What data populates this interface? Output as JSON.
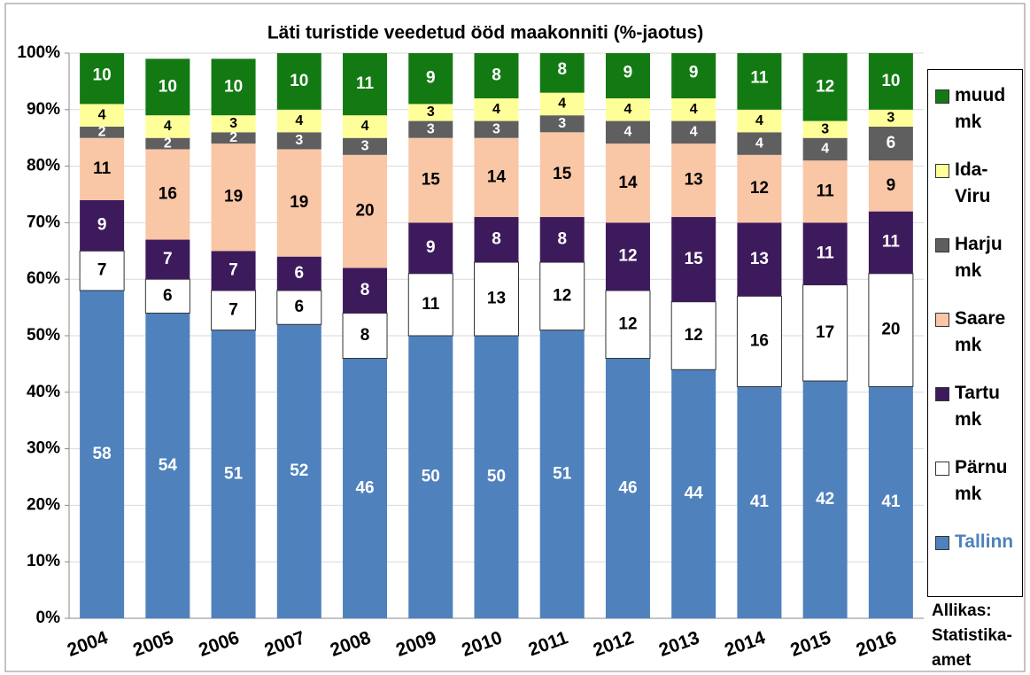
{
  "chart_data": {
    "type": "stacked_bar",
    "title": "Läti turistide veedetud ööd maakonniti (%-jaotus)",
    "categories": [
      "2004",
      "2005",
      "2006",
      "2007",
      "2008",
      "2009",
      "2010",
      "2011",
      "2012",
      "2013",
      "2014",
      "2015",
      "2016"
    ],
    "series": [
      {
        "name": "Tallinn",
        "color": "#4f81bd",
        "label_color": "#ffffff",
        "values": [
          58,
          54,
          51,
          52,
          46,
          50,
          50,
          51,
          46,
          44,
          41,
          42,
          41
        ]
      },
      {
        "name": "Pärnu mk",
        "color": "#ffffff",
        "label_color": "#000000",
        "values": [
          7,
          6,
          7,
          6,
          8,
          11,
          13,
          12,
          12,
          12,
          16,
          17,
          20
        ]
      },
      {
        "name": "Tartu mk",
        "color": "#3d1a5c",
        "label_color": "#ffffff",
        "values": [
          9,
          7,
          7,
          6,
          8,
          9,
          8,
          8,
          12,
          15,
          13,
          11,
          11
        ]
      },
      {
        "name": "Saare mk",
        "color": "#f9c6a6",
        "label_color": "#000000",
        "values": [
          11,
          16,
          19,
          19,
          20,
          15,
          14,
          15,
          14,
          13,
          12,
          11,
          9
        ]
      },
      {
        "name": "Harju mk",
        "color": "#5f5f5f",
        "label_color": "#ffffff",
        "values": [
          2,
          2,
          2,
          3,
          3,
          3,
          3,
          3,
          4,
          4,
          4,
          4,
          6
        ]
      },
      {
        "name": "Ida-Viru",
        "color": "#ffff99",
        "label_color": "#000000",
        "values": [
          4,
          4,
          3,
          4,
          4,
          3,
          4,
          4,
          4,
          4,
          4,
          3,
          3
        ]
      },
      {
        "name": "muud mk",
        "color": "#137a13",
        "label_color": "#ffffff",
        "values": [
          10,
          10,
          10,
          10,
          11,
          9,
          8,
          8,
          9,
          9,
          11,
          12,
          10
        ]
      }
    ],
    "ylim": [
      0,
      100
    ],
    "yticks": [
      {
        "value": 0,
        "label": "0%"
      },
      {
        "value": 10,
        "label": "10%"
      },
      {
        "value": 20,
        "label": "20%"
      },
      {
        "value": 30,
        "label": "30%"
      },
      {
        "value": 40,
        "label": "40%"
      },
      {
        "value": 50,
        "label": "50%"
      },
      {
        "value": 60,
        "label": "60%"
      },
      {
        "value": 70,
        "label": "70%"
      },
      {
        "value": 80,
        "label": "80%"
      },
      {
        "value": 90,
        "label": "90%"
      },
      {
        "value": 100,
        "label": "100%"
      }
    ],
    "grid": true,
    "legend": "right",
    "annotation": "Allikas: Statistika-amet"
  }
}
